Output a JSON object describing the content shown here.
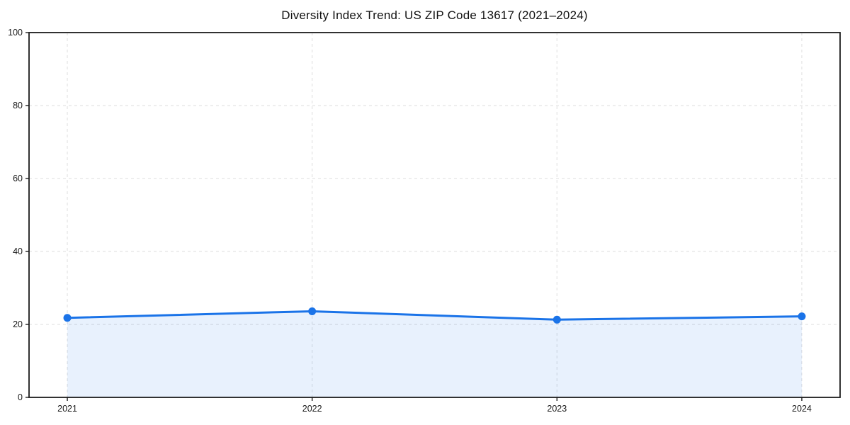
{
  "chart_data": {
    "type": "area",
    "title": "Diversity Index Trend: US ZIP Code 13617 (2021–2024)",
    "categories": [
      "2021",
      "2022",
      "2023",
      "2024"
    ],
    "series": [
      {
        "name": "Diversity Index",
        "values": [
          21.8,
          23.6,
          21.3,
          22.2
        ]
      }
    ],
    "xlabel": "",
    "ylabel": "",
    "ylim": [
      0,
      100
    ],
    "yticks": [
      0,
      20,
      40,
      60,
      80,
      100
    ],
    "grid": true,
    "grid_style": "dashed",
    "legend_position": "none",
    "colors": {
      "line": "#1a73e8",
      "marker": "#1a73e8",
      "fill": "rgba(26,115,232,0.10)",
      "gridline": "#e3e3e3",
      "spine": "#1c1c1c",
      "tick_label": "#1a1a1a",
      "background": "#ffffff"
    }
  }
}
